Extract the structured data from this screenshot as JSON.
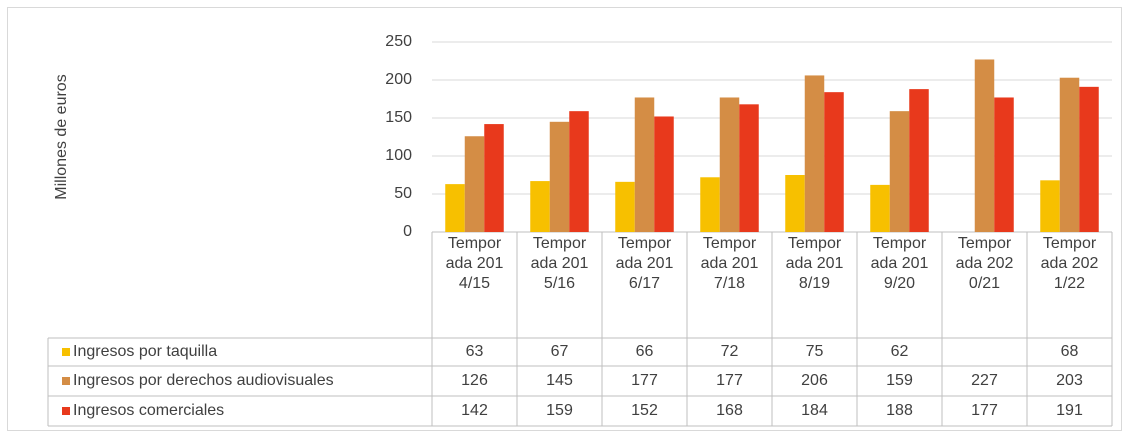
{
  "chart_data": {
    "type": "bar",
    "y_axis_label": "Millones de euros",
    "categories": [
      "Temporada 2014/15",
      "Temporada 2015/16",
      "Temporada 2016/17",
      "Temporada 2017/18",
      "Temporada 2018/19",
      "Temporada 2019/20",
      "Temporada 2020/21",
      "Temporada 2021/22"
    ],
    "series": [
      {
        "name": "Ingresos por taquilla",
        "color": "#f7c000",
        "values": [
          63,
          67,
          66,
          72,
          75,
          62,
          null,
          68
        ]
      },
      {
        "name": "Ingresos por derechos audiovisuales",
        "color": "#d48d45",
        "values": [
          126,
          145,
          177,
          177,
          206,
          159,
          227,
          203
        ]
      },
      {
        "name": "Ingresos comerciales",
        "color": "#e8391c",
        "values": [
          142,
          159,
          152,
          168,
          184,
          188,
          177,
          191
        ]
      }
    ],
    "ylim": [
      0,
      250
    ],
    "yticks": [
      0,
      50,
      100,
      150,
      200,
      250
    ],
    "grid": true,
    "data_table": true
  }
}
